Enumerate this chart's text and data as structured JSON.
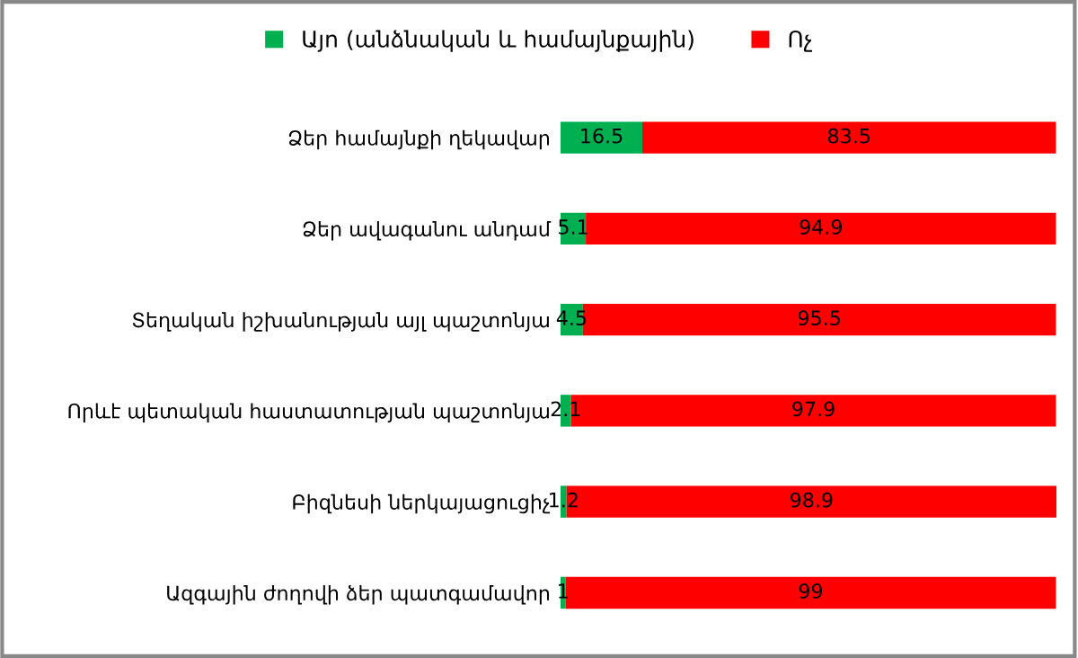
{
  "chart_data": {
    "type": "bar",
    "orientation": "horizontal",
    "stacked": true,
    "data_labels": true,
    "legend": "top",
    "grid": false,
    "categories": [
      "Ձեր համայնքի ղեկավար",
      "Ձեր ավագանու անդամ",
      "Տեղական իշխանության այլ պաշտոնյա",
      "Որևէ պետական հաստատության պաշտոնյա",
      "Բիզնեսի ներկայացուցիչ",
      "Ազգային ժողովի ձեր պատգամավոր"
    ],
    "series": [
      {
        "name": "Այո (անձնական և համայնքային)",
        "color": "#00b050",
        "values": [
          16.5,
          5.1,
          4.5,
          2.1,
          1.2,
          1
        ]
      },
      {
        "name": "Ոչ",
        "color": "#ff0000",
        "values": [
          83.5,
          94.9,
          95.5,
          97.9,
          98.9,
          99
        ]
      }
    ]
  }
}
